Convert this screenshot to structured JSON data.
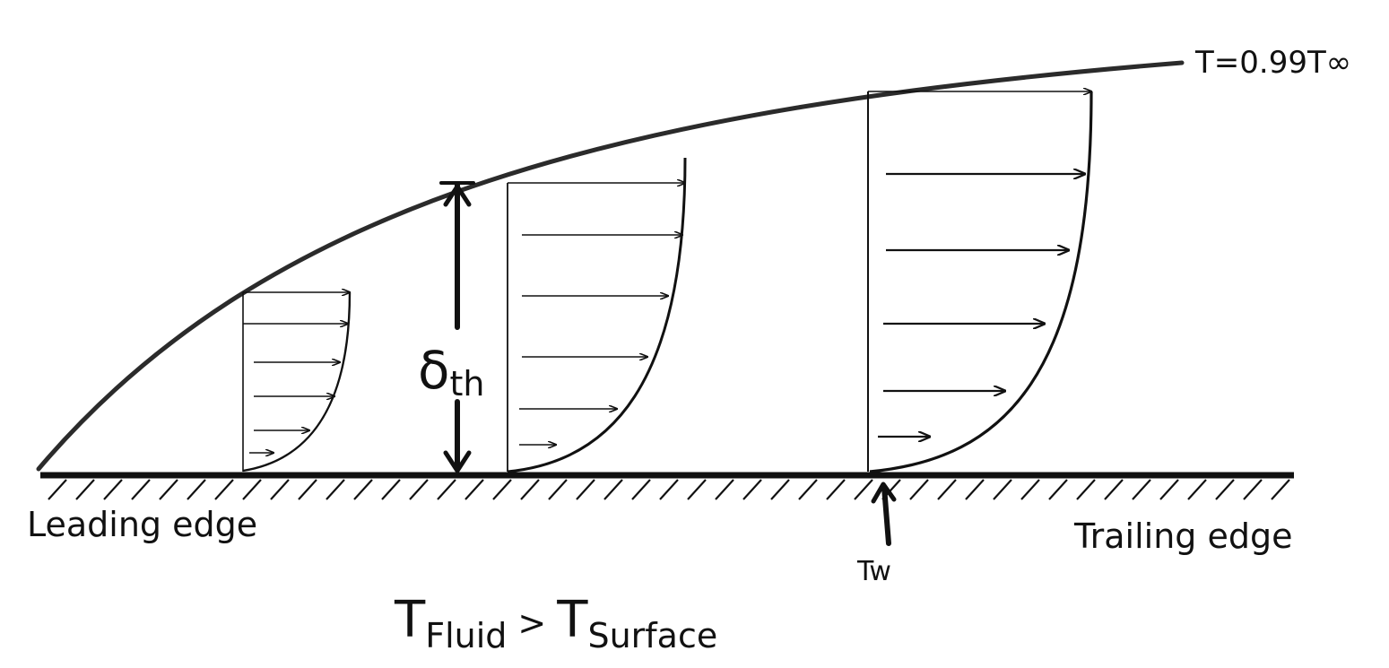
{
  "labels": {
    "boundary_curve": "T=0.99T∞",
    "leading_edge": "Leading edge",
    "trailing_edge": "Trailing edge",
    "wall_temperature": "Tw",
    "thickness_symbol": "δ",
    "thickness_subscript": "th",
    "relation_left_symbol": "T",
    "relation_left_subscript": "Fluid",
    "relation_operator": ">",
    "relation_right_symbol": "T",
    "relation_right_subscript": "Surface"
  },
  "colors": {
    "ink": "#111111",
    "background": "#ffffff"
  },
  "profiles": [
    {
      "name": "profile-1",
      "arrow_count": 6
    },
    {
      "name": "profile-2",
      "arrow_count": 7
    },
    {
      "name": "profile-3",
      "arrow_count": 6
    }
  ]
}
